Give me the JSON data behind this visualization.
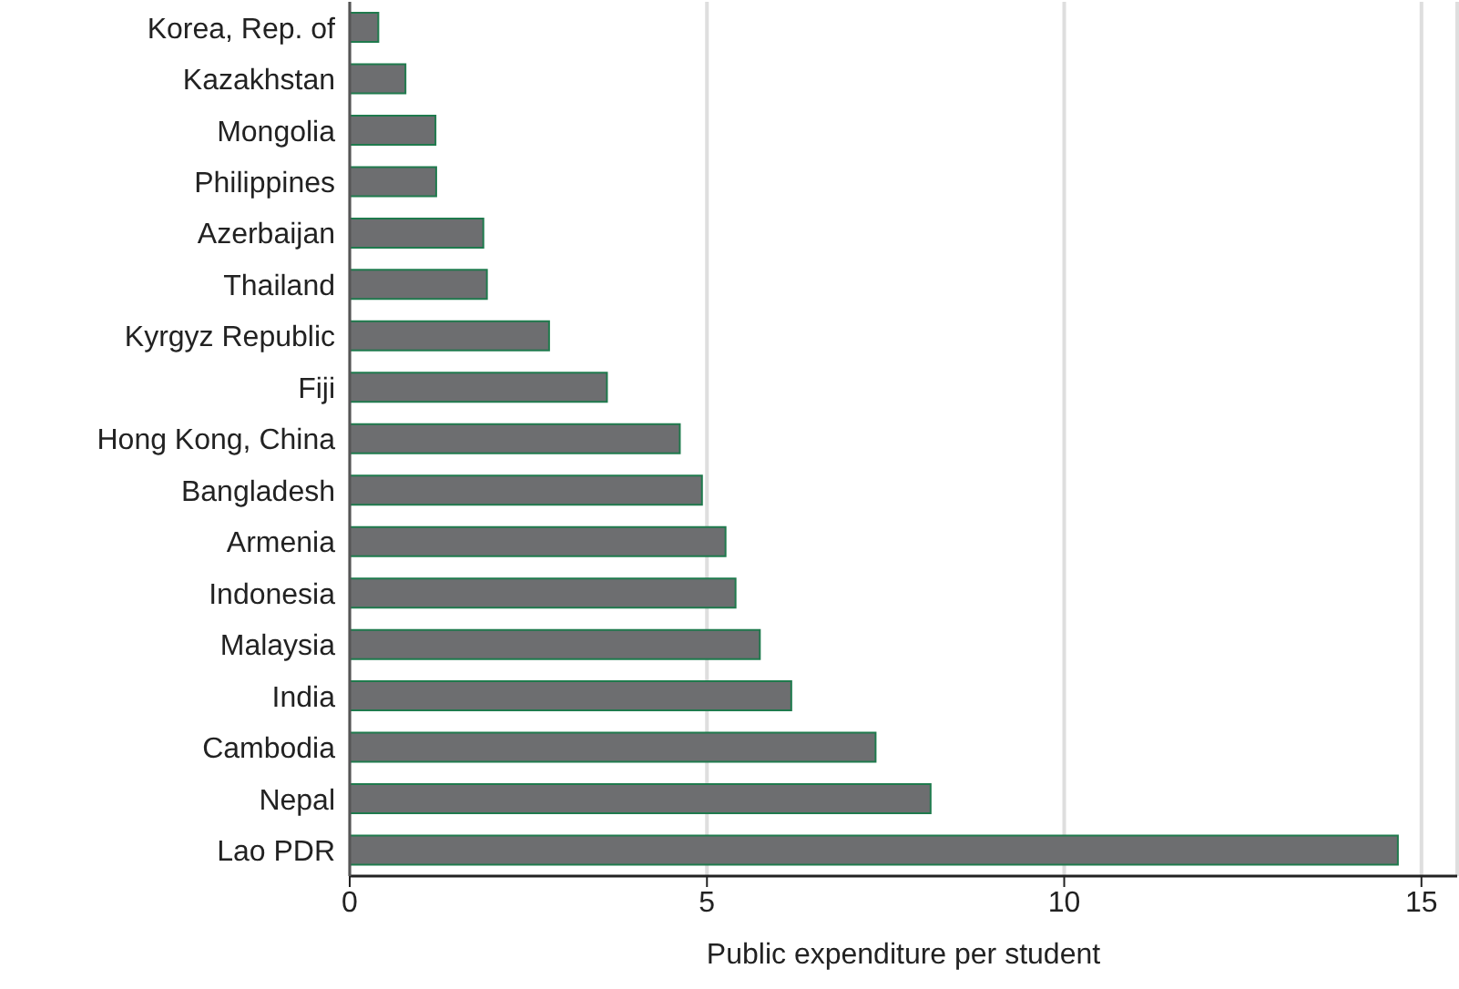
{
  "chart_data": {
    "type": "bar",
    "orientation": "horizontal",
    "xlabel": "Public expenditure per student",
    "categories": [
      "Korea, Rep. of",
      "Kazakhstan",
      "Mongolia",
      "Philippines",
      "Azerbaijan",
      "Thailand",
      "Kyrgyz Republic",
      "Fiji",
      "Hong Kong, China",
      "Bangladesh",
      "Armenia",
      "Indonesia",
      "Malaysia",
      "India",
      "Cambodia",
      "Nepal",
      "Lao PDR"
    ],
    "values": [
      0.4,
      0.78,
      1.2,
      1.21,
      1.87,
      1.92,
      2.79,
      3.6,
      4.62,
      4.93,
      5.26,
      5.4,
      5.74,
      6.18,
      7.36,
      8.13,
      14.67
    ],
    "color": "#6d6e70",
    "xlim": [
      0,
      15.5
    ],
    "xticks": [
      0,
      5,
      10,
      15
    ],
    "grid": "x",
    "legend": false
  }
}
